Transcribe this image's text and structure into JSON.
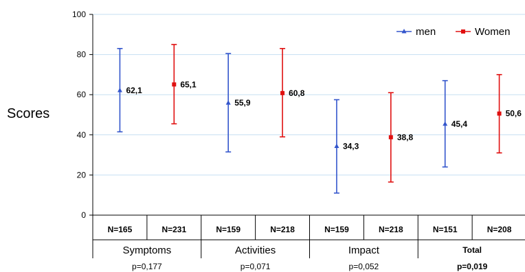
{
  "chart_data": {
    "type": "errorbar",
    "ylabel": "Scores",
    "ylim": [
      0,
      100
    ],
    "yticks": [
      0,
      20,
      40,
      60,
      80,
      100
    ],
    "grid": true,
    "legend_position": "top-right",
    "colors": {
      "men": "#3355cc",
      "women": "#e01010"
    },
    "series": [
      {
        "name": "men",
        "marker": "triangle"
      },
      {
        "name": "Women",
        "marker": "square"
      }
    ],
    "points": [
      {
        "series": 0,
        "n": "N=165",
        "value": 62.1,
        "label": "62,1",
        "low": 41.5,
        "high": 83.0
      },
      {
        "series": 1,
        "n": "N=231",
        "value": 65.1,
        "label": "65,1",
        "low": 45.5,
        "high": 85.0
      },
      {
        "series": 0,
        "n": "N=159",
        "value": 55.9,
        "label": "55,9",
        "low": 31.5,
        "high": 80.5
      },
      {
        "series": 1,
        "n": "N=218",
        "value": 60.8,
        "label": "60,8",
        "low": 39.0,
        "high": 83.0
      },
      {
        "series": 0,
        "n": "N=159",
        "value": 34.3,
        "label": "34,3",
        "low": 11.0,
        "high": 57.5
      },
      {
        "series": 1,
        "n": "N=218",
        "value": 38.8,
        "label": "38,8",
        "low": 16.5,
        "high": 61.0
      },
      {
        "series": 0,
        "n": "N=151",
        "value": 45.4,
        "label": "45,4",
        "low": 24.0,
        "high": 67.0
      },
      {
        "series": 1,
        "n": "N=208",
        "value": 50.6,
        "label": "50,6",
        "low": 31.0,
        "high": 70.0
      }
    ],
    "groups": [
      {
        "name": "Symptoms",
        "p": "p=0,177",
        "bold": false
      },
      {
        "name": "Activities",
        "p": "p=0,071",
        "bold": false
      },
      {
        "name": "Impact",
        "p": "p=0,052",
        "bold": false
      },
      {
        "name": "Total",
        "p": "p=0,019",
        "bold": true
      }
    ]
  }
}
